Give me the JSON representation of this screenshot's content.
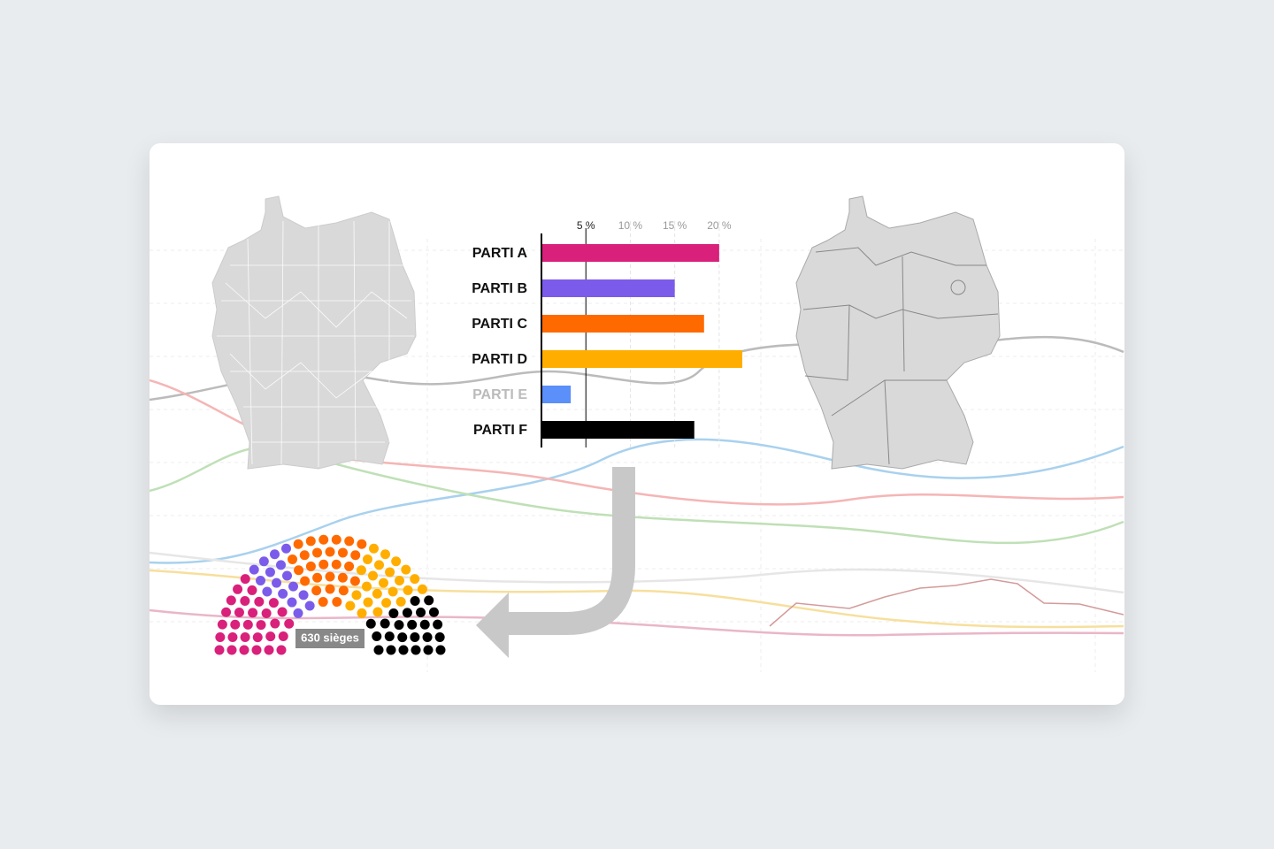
{
  "chart_data": {
    "type": "bar",
    "categories": [
      "PARTI A",
      "PARTI B",
      "PARTI C",
      "PARTI D",
      "PARTI E",
      "PARTI F"
    ],
    "values": [
      20,
      15,
      18.3,
      22.6,
      3.3,
      17.2
    ],
    "colors": [
      "#d9207b",
      "#7b5cea",
      "#ff6a00",
      "#ffae00",
      "#5b8ff9",
      "#000000"
    ],
    "label_colors": [
      "#111111",
      "#111111",
      "#111111",
      "#111111",
      "#bbbbbb",
      "#111111"
    ],
    "xlim": [
      0,
      23
    ],
    "xticks": [
      {
        "value": 5,
        "label": "5 %"
      },
      {
        "value": 10,
        "label": "10 %"
      },
      {
        "value": 15,
        "label": "15 %"
      },
      {
        "value": 20,
        "label": "20 %"
      }
    ],
    "tick_colors": [
      "#000000",
      "#e4e4e4",
      "#e4e4e4",
      "#e4e4e4"
    ],
    "tick_label_colors": [
      "#222222",
      "#999999",
      "#999999",
      "#999999"
    ]
  },
  "parliament_label": "630 sièges"
}
